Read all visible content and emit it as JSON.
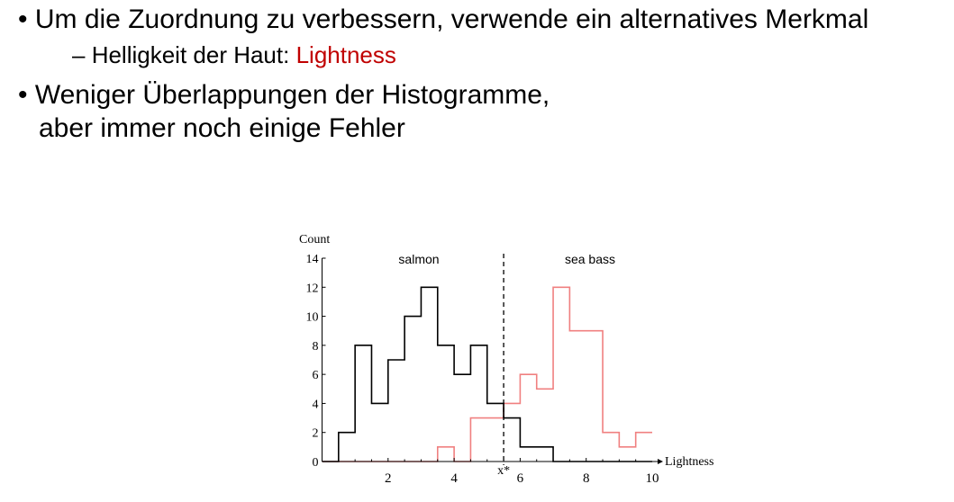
{
  "bullets": [
    {
      "text": "Um die Zuordnung zu verbessern, verwende ein alternatives Merkmal",
      "sub": {
        "prefix": "Helligkeit der Haut: ",
        "highlight": "Lightness"
      }
    },
    {
      "line1": "Weniger Überlappungen der Histogramme,",
      "line2": "aber immer noch einige Fehler"
    }
  ],
  "colors": {
    "highlight": "#c00000",
    "salmon": "#000000",
    "sea_bass": "#f08080"
  },
  "chart_data": {
    "type": "histogram",
    "xlabel": "Lightness",
    "ylabel": "Count",
    "xlim": [
      0,
      10
    ],
    "ylim": [
      0,
      14
    ],
    "xticks": [
      2,
      4,
      6,
      8,
      10
    ],
    "yticks": [
      0,
      2,
      4,
      6,
      8,
      10,
      12,
      14
    ],
    "bin_width": 0.5,
    "bin_start": 0,
    "series": [
      {
        "name": "salmon",
        "color": "#000000",
        "values": [
          0,
          2,
          8,
          4,
          7,
          10,
          12,
          8,
          6,
          8,
          4,
          3,
          1,
          1,
          0,
          0,
          0,
          0,
          0,
          0
        ]
      },
      {
        "name": "sea bass",
        "color": "#f08080",
        "values": [
          0,
          0,
          0,
          0,
          0,
          0,
          0,
          1,
          0,
          3,
          3,
          4,
          6,
          5,
          12,
          9,
          9,
          2,
          1,
          2
        ]
      }
    ],
    "threshold": {
      "label": "x*",
      "x": 5.5
    }
  }
}
